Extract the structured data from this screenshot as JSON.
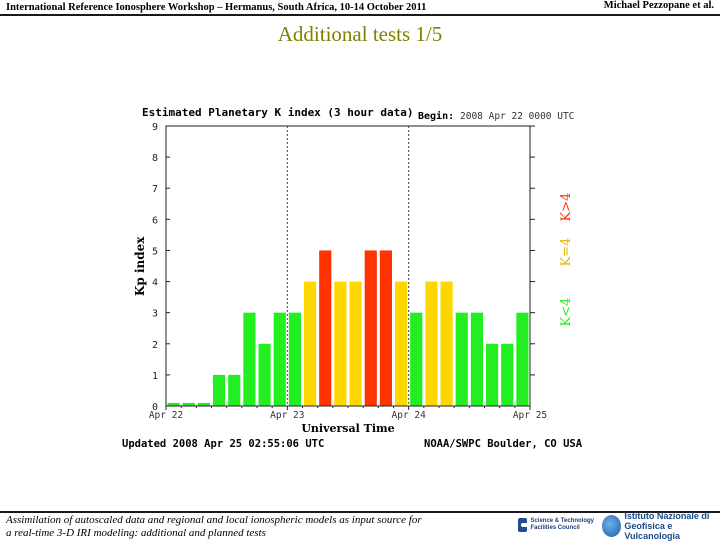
{
  "header": {
    "workshop": "International Reference Ionosphere Workshop – Hermanus, South Africa, 10-14 October 2011",
    "author": "Michael Pezzopane et al."
  },
  "slide_title": "Additional tests 1/5",
  "chart_data": {
    "type": "bar",
    "title": "Estimated Planetary K index (3 hour data)",
    "begin_label": "Begin:",
    "begin_value": "2008 Apr 22 0000 UTC",
    "xlabel": "Universal Time",
    "ylabel": "Kp index",
    "ylim": [
      0,
      9
    ],
    "yticks": [
      "0",
      "1",
      "2",
      "3",
      "4",
      "5",
      "6",
      "7",
      "8",
      "9"
    ],
    "xticks": [
      {
        "index": 0,
        "label": "Apr 22"
      },
      {
        "index": 8,
        "label": "Apr 23"
      },
      {
        "index": 16,
        "label": "Apr 24"
      },
      {
        "index": 24,
        "label": "Apr 25"
      }
    ],
    "n_intervals": 24,
    "values": [
      0.1,
      0.1,
      0.1,
      1,
      1,
      3,
      2,
      3,
      3,
      4,
      5,
      4,
      4,
      5,
      5,
      4,
      3,
      4,
      4,
      3,
      3,
      2,
      2,
      3
    ],
    "colors": {
      "low": "#22ee22",
      "storm4": "#ffd700",
      "storm5": "#ff3300"
    },
    "legend": [
      "K<4",
      "K=4",
      "K>4"
    ],
    "updated": "Updated 2008 Apr 25 02:55:06 UTC",
    "source": "NOAA/SWPC Boulder, CO USA"
  },
  "footer": {
    "line1": "Assimilation of autoscaled data and regional and local ionospheric models as input source for",
    "line2": "a real-time 3-D IRI modeling: additional and planned tests"
  },
  "logos": {
    "left": "Science & Technology Facilities Council",
    "right_line1": "Istituto Nazionale di",
    "right_line2": "Geofisica e Vulcanologia"
  }
}
